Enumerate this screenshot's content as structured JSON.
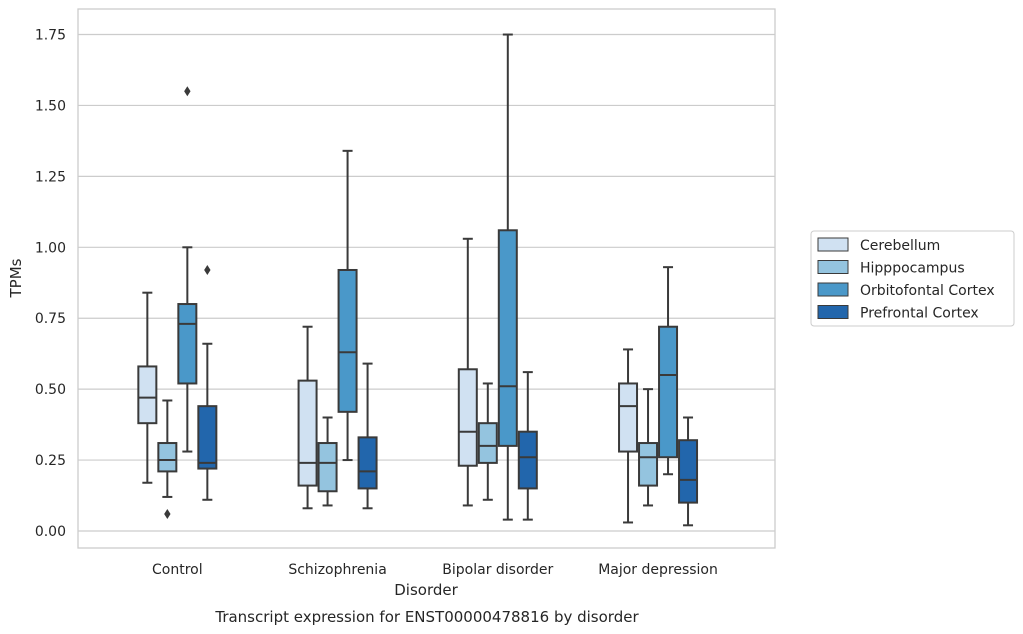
{
  "chart_data": {
    "type": "box",
    "caption": "Transcript expression for ENST00000478816 by disorder",
    "xlabel": "Disorder",
    "ylabel": "TPMs",
    "ylim": [
      -0.06,
      1.84
    ],
    "yticks": [
      0.0,
      0.25,
      0.5,
      0.75,
      1.0,
      1.25,
      1.5,
      1.75
    ],
    "ytick_labels": [
      "0.00",
      "0.25",
      "0.50",
      "0.75",
      "1.00",
      "1.25",
      "1.50",
      "1.75"
    ],
    "grid": "horizontal",
    "legend_position": "right-outside",
    "categories": [
      "Control",
      "Schizophrenia",
      "Bipolar disorder",
      "Major depression"
    ],
    "series": [
      {
        "name": "Cerebellum",
        "color": "#d0e1f2",
        "boxes": [
          {
            "whisker_low": 0.17,
            "q1": 0.38,
            "median": 0.47,
            "q3": 0.58,
            "whisker_high": 0.84,
            "outliers": []
          },
          {
            "whisker_low": 0.08,
            "q1": 0.16,
            "median": 0.24,
            "q3": 0.53,
            "whisker_high": 0.72,
            "outliers": []
          },
          {
            "whisker_low": 0.09,
            "q1": 0.23,
            "median": 0.35,
            "q3": 0.57,
            "whisker_high": 1.03,
            "outliers": []
          },
          {
            "whisker_low": 0.03,
            "q1": 0.28,
            "median": 0.44,
            "q3": 0.52,
            "whisker_high": 0.64,
            "outliers": []
          }
        ]
      },
      {
        "name": "Hipppocampus",
        "color": "#94c4df",
        "boxes": [
          {
            "whisker_low": 0.12,
            "q1": 0.21,
            "median": 0.25,
            "q3": 0.31,
            "whisker_high": 0.46,
            "outliers": [
              0.06
            ]
          },
          {
            "whisker_low": 0.09,
            "q1": 0.14,
            "median": 0.24,
            "q3": 0.31,
            "whisker_high": 0.4,
            "outliers": []
          },
          {
            "whisker_low": 0.11,
            "q1": 0.24,
            "median": 0.3,
            "q3": 0.38,
            "whisker_high": 0.52,
            "outliers": []
          },
          {
            "whisker_low": 0.09,
            "q1": 0.16,
            "median": 0.26,
            "q3": 0.31,
            "whisker_high": 0.5,
            "outliers": []
          }
        ]
      },
      {
        "name": "Orbitofontal Cortex",
        "color": "#4a98c9",
        "boxes": [
          {
            "whisker_low": 0.28,
            "q1": 0.52,
            "median": 0.73,
            "q3": 0.8,
            "whisker_high": 1.0,
            "outliers": [
              1.55
            ]
          },
          {
            "whisker_low": 0.25,
            "q1": 0.42,
            "median": 0.63,
            "q3": 0.92,
            "whisker_high": 1.34,
            "outliers": []
          },
          {
            "whisker_low": 0.04,
            "q1": 0.3,
            "median": 0.51,
            "q3": 1.06,
            "whisker_high": 1.75,
            "outliers": []
          },
          {
            "whisker_low": 0.2,
            "q1": 0.26,
            "median": 0.55,
            "q3": 0.72,
            "whisker_high": 0.93,
            "outliers": []
          }
        ]
      },
      {
        "name": "Prefrontal Cortex",
        "color": "#2266ac",
        "boxes": [
          {
            "whisker_low": 0.11,
            "q1": 0.22,
            "median": 0.24,
            "q3": 0.44,
            "whisker_high": 0.66,
            "outliers": [
              0.92
            ]
          },
          {
            "whisker_low": 0.08,
            "q1": 0.15,
            "median": 0.21,
            "q3": 0.33,
            "whisker_high": 0.59,
            "outliers": []
          },
          {
            "whisker_low": 0.04,
            "q1": 0.15,
            "median": 0.26,
            "q3": 0.35,
            "whisker_high": 0.56,
            "outliers": []
          },
          {
            "whisker_low": 0.02,
            "q1": 0.1,
            "median": 0.18,
            "q3": 0.32,
            "whisker_high": 0.4,
            "outliers": []
          }
        ]
      }
    ]
  },
  "colors": {
    "line": "#3a3a3a",
    "grid": "#cccccc",
    "frame": "#cccccc",
    "text": "#262626"
  }
}
